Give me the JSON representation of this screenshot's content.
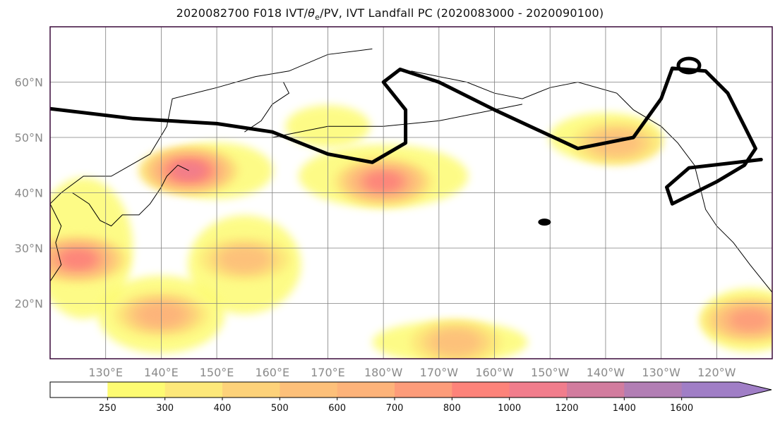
{
  "chart_data": {
    "type": "heatmap",
    "title_prefix": "2020082700 F018 IVT/",
    "title_theta": "θ",
    "title_sub": "e",
    "title_suffix": "/PV, IVT Landfall PC (2020083000 - 2020090100)",
    "projection": "plate carree",
    "lon_range_east": [
      120,
      250
    ],
    "lat_range": [
      10,
      70
    ],
    "grid": true,
    "lat_ticks": [
      "20°N",
      "30°N",
      "40°N",
      "50°N",
      "60°N"
    ],
    "lat_values": [
      20,
      30,
      40,
      50,
      60
    ],
    "lon_ticks": [
      "130°E",
      "140°E",
      "150°E",
      "160°E",
      "170°E",
      "180°W",
      "170°W",
      "160°W",
      "150°W",
      "140°W",
      "130°W",
      "120°W"
    ],
    "lon_values": [
      130,
      140,
      150,
      160,
      170,
      180,
      190,
      200,
      210,
      220,
      230,
      240
    ],
    "colorbar": {
      "levels": [
        "250",
        "300",
        "400",
        "500",
        "600",
        "700",
        "800",
        "1000",
        "1200",
        "1400",
        "1600"
      ],
      "colors": [
        "#ffffff",
        "#fdfb72",
        "#fde87a",
        "#fdd27a",
        "#fdc07a",
        "#fdb37a",
        "#fd9c7a",
        "#fd837a",
        "#f17d8c",
        "#d27c9e",
        "#b27eb4",
        "#a07ec6"
      ],
      "extend": "max"
    },
    "ivt_regions": [
      {
        "lon": 145,
        "lat": 44,
        "peak": 1000
      },
      {
        "lon": 180,
        "lat": 42,
        "peak": 900
      },
      {
        "lon": 222,
        "lat": 49,
        "peak": 500
      },
      {
        "lon": 125,
        "lat": 28,
        "peak": 800
      },
      {
        "lon": 155,
        "lat": 28,
        "peak": 500
      },
      {
        "lon": 140,
        "lat": 18,
        "peak": 600
      },
      {
        "lon": 193,
        "lat": 13,
        "peak": 500
      },
      {
        "lon": 246,
        "lat": 17,
        "peak": 700
      }
    ],
    "contour_line": [
      [
        120,
        55.2
      ],
      [
        135,
        53.4
      ],
      [
        150,
        52.5
      ],
      [
        160,
        51
      ],
      [
        170,
        47
      ],
      [
        178,
        45.5
      ],
      [
        184,
        49
      ],
      [
        184,
        55
      ],
      [
        180,
        60
      ],
      [
        183,
        62.3
      ],
      [
        190,
        60
      ],
      [
        200,
        55
      ],
      [
        215,
        48
      ],
      [
        225,
        50
      ],
      [
        230,
        57
      ],
      [
        232,
        62.5
      ],
      [
        238,
        62
      ],
      [
        242,
        58
      ],
      [
        245,
        52
      ],
      [
        247,
        48
      ],
      [
        245,
        45
      ],
      [
        240,
        42
      ],
      [
        236,
        40
      ],
      [
        232,
        38
      ],
      [
        231,
        41
      ],
      [
        235,
        44.5
      ],
      [
        248,
        46
      ]
    ]
  }
}
